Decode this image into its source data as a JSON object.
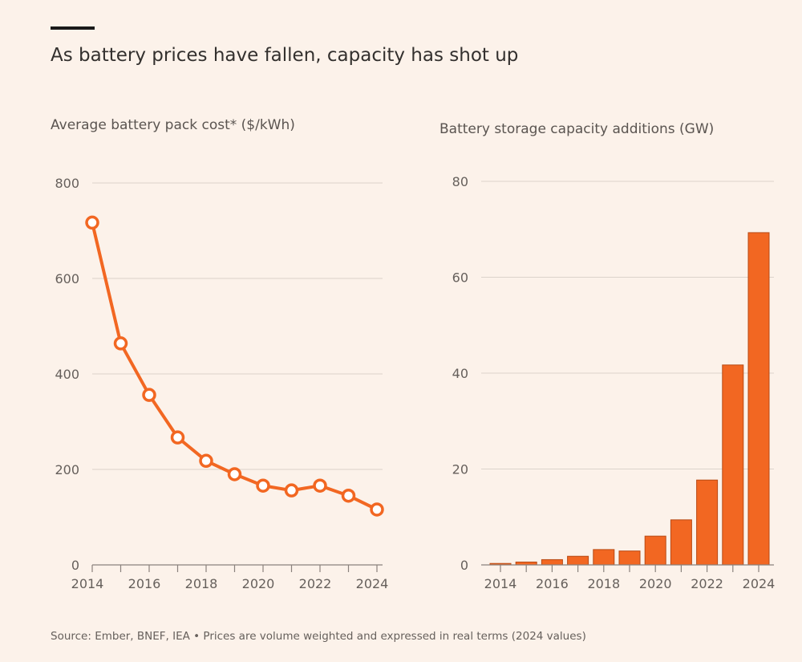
{
  "title": "As battery prices have fallen, capacity has shot up",
  "source": "Source: Ember, BNEF, IEA • Prices are volume weighted and expressed in real terms (2024 values)",
  "colors": {
    "accent": "#f26722",
    "outline": "#b84a14",
    "grid": "#dcd3cb",
    "background": "#fcf2ea"
  },
  "chart_data": [
    {
      "type": "line",
      "title": "Average battery pack cost* ($/kWh)",
      "x": [
        2014,
        2015,
        2016,
        2017,
        2018,
        2019,
        2020,
        2021,
        2022,
        2023,
        2024
      ],
      "values": [
        717,
        464,
        356,
        267,
        218,
        190,
        166,
        156,
        166,
        145,
        116
      ],
      "ylim": [
        0,
        800
      ],
      "yticks": [
        0,
        200,
        400,
        600,
        800
      ],
      "xticks": [
        2014,
        2016,
        2018,
        2020,
        2022,
        2024
      ],
      "grid": true,
      "markers": "hollow-circle"
    },
    {
      "type": "bar",
      "title": "Battery storage capacity additions (GW)",
      "categories": [
        2014,
        2015,
        2016,
        2017,
        2018,
        2019,
        2020,
        2021,
        2022,
        2023,
        2024
      ],
      "values": [
        0.3,
        0.6,
        1.1,
        1.8,
        3.2,
        2.9,
        6.0,
        9.4,
        17.7,
        41.7,
        69.3
      ],
      "ylim": [
        0,
        80
      ],
      "yticks": [
        0,
        20,
        40,
        60,
        80
      ],
      "xticks": [
        2014,
        2016,
        2018,
        2020,
        2022,
        2024
      ],
      "grid": true
    }
  ]
}
